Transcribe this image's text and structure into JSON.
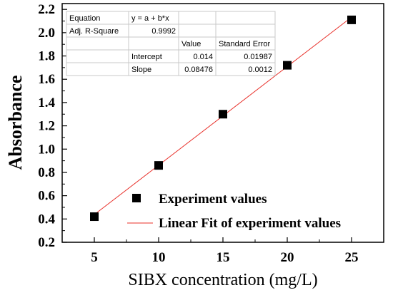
{
  "chart_data": {
    "type": "scatter",
    "xlabel": "SIBX concentration (mg/L)",
    "ylabel": "Absorbance",
    "xlim": [
      2.5,
      27.5
    ],
    "ylim": [
      0.2,
      2.25
    ],
    "x_ticks": [
      "5",
      "10",
      "15",
      "20",
      "25"
    ],
    "y_ticks": [
      "0.2",
      "0.4",
      "0.6",
      "0.8",
      "1.0",
      "1.2",
      "1.4",
      "1.6",
      "1.8",
      "2.0",
      "2.2"
    ],
    "grid": false,
    "legend_position": "bottom-right",
    "series": [
      {
        "name": "Experiment values",
        "kind": "scatter",
        "marker": "square",
        "color": "#000000",
        "x": [
          5,
          10,
          15,
          20,
          25
        ],
        "y": [
          0.42,
          0.86,
          1.3,
          1.72,
          2.11
        ]
      },
      {
        "name": "Linear Fit of experiment values",
        "kind": "line",
        "color": "#e8302a",
        "x": [
          5,
          25
        ],
        "y": [
          0.4378,
          2.133
        ]
      }
    ],
    "fit_table": {
      "rows": [
        [
          "Equation",
          "y = a + b*x",
          "",
          ""
        ],
        [
          "Adj. R-Square",
          "0.9992",
          "",
          ""
        ],
        [
          "",
          "",
          "Value",
          "Standard Error"
        ],
        [
          "",
          "Intercept",
          "0.014",
          "0.01987"
        ],
        [
          "",
          "Slope",
          "0.08476",
          "0.0012"
        ]
      ]
    }
  }
}
